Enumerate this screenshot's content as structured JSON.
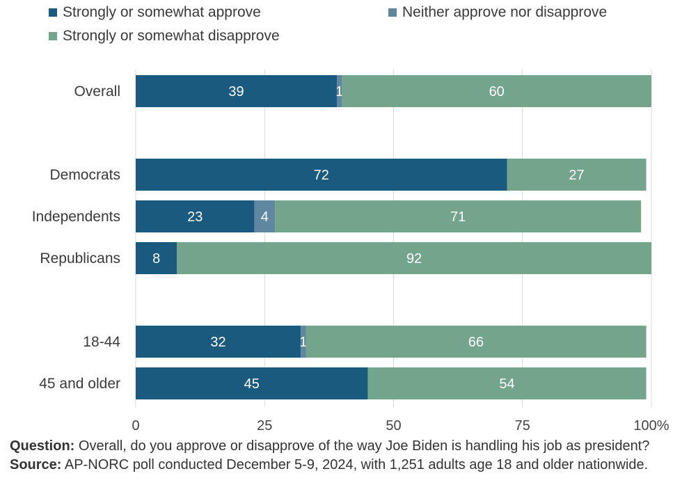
{
  "legend": {
    "approve": "Strongly or somewhat approve",
    "neither": "Neither approve nor disapprove",
    "disapprove": "Strongly or somewhat disapprove"
  },
  "colors": {
    "approve": "#1a5a7e",
    "neither": "#5f87a0",
    "disapprove": "#72a58b",
    "grid": "#d9d9d9",
    "bar_label": "#ffffff"
  },
  "footer": {
    "question_label": "Question:",
    "question_text": "Overall, do you approve or disapprove of the way Joe Biden is handling his job as president?",
    "source_label": "Source:",
    "source_text": "AP-NORC poll conducted December 5-9, 2024, with 1,251 adults age 18 and older nationwide."
  },
  "chart_data": {
    "type": "bar",
    "orientation": "horizontal",
    "stacked": true,
    "categories": [
      "Overall",
      "Democrats",
      "Independents",
      "Republicans",
      "18-44",
      "45 and older"
    ],
    "series": [
      {
        "name": "Strongly or somewhat approve",
        "values": [
          39,
          72,
          23,
          8,
          32,
          45
        ]
      },
      {
        "name": "Neither approve nor disapprove",
        "values": [
          1,
          0,
          4,
          0,
          1,
          0
        ]
      },
      {
        "name": "Strongly or somewhat disapprove",
        "values": [
          60,
          27,
          71,
          92,
          66,
          54
        ]
      }
    ],
    "x_ticks": [
      "0",
      "25",
      "50",
      "75",
      "100%"
    ],
    "xlim": [
      0,
      100
    ],
    "grid": true,
    "legend_position": "top-left"
  }
}
